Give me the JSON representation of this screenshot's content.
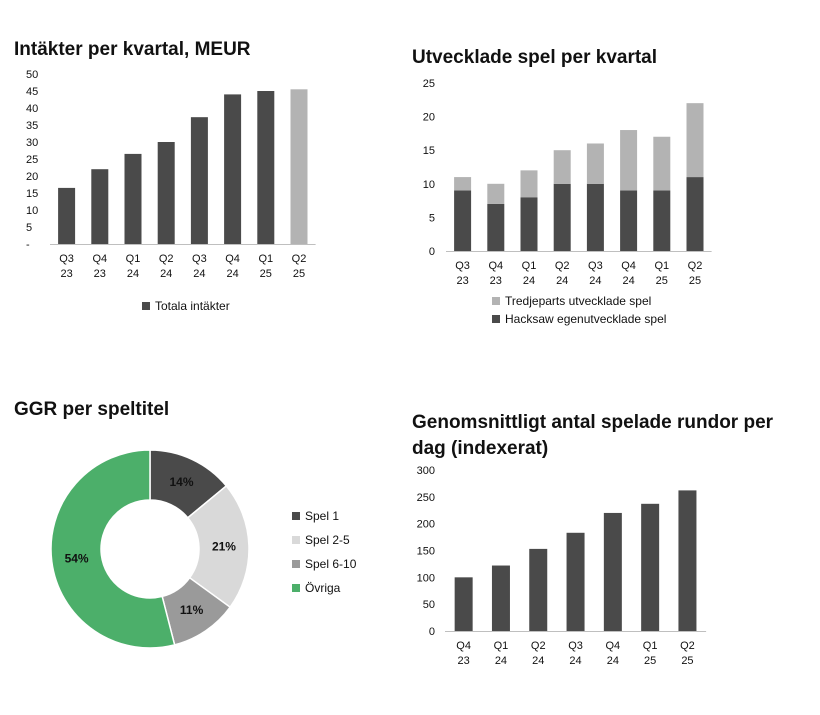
{
  "chart_data": [
    {
      "type": "bar",
      "title": "Intäkter per kvartal, MEUR",
      "categories": [
        [
          "Q3",
          "23"
        ],
        [
          "Q4",
          "23"
        ],
        [
          "Q1",
          "24"
        ],
        [
          "Q2",
          "24"
        ],
        [
          "Q3",
          "24"
        ],
        [
          "Q4",
          "24"
        ],
        [
          "Q1",
          "25"
        ],
        [
          "Q2",
          "25"
        ]
      ],
      "series": [
        {
          "name": "Totala intäkter",
          "values": [
            16.5,
            22,
            26.5,
            30,
            37.3,
            44,
            45,
            45.5
          ]
        }
      ],
      "bar_colors": [
        "#4a4a4a",
        "#4a4a4a",
        "#4a4a4a",
        "#4a4a4a",
        "#4a4a4a",
        "#4a4a4a",
        "#4a4a4a",
        "#b3b3b3"
      ],
      "y_ticks": [
        0,
        5,
        10,
        15,
        20,
        25,
        30,
        35,
        40,
        45,
        50
      ],
      "y_tick_labels": [
        "-",
        "5",
        "10",
        "15",
        "20",
        "25",
        "30",
        "35",
        "40",
        "45",
        "50"
      ],
      "ylim": [
        0,
        50
      ],
      "xlabel": "",
      "ylabel": "",
      "legend": {
        "labels": [
          "Totala intäkter"
        ],
        "colors": [
          "#4a4a4a"
        ],
        "position": "bottom"
      }
    },
    {
      "type": "bar",
      "stacked": true,
      "title": "Utvecklade spel per kvartal",
      "categories": [
        [
          "Q3",
          "23"
        ],
        [
          "Q4",
          "23"
        ],
        [
          "Q1",
          "24"
        ],
        [
          "Q2",
          "24"
        ],
        [
          "Q3",
          "24"
        ],
        [
          "Q4",
          "24"
        ],
        [
          "Q1",
          "25"
        ],
        [
          "Q2",
          "25"
        ]
      ],
      "series": [
        {
          "name": "Hacksaw egenutvecklade spel",
          "color": "#4a4a4a",
          "values": [
            9,
            7,
            8,
            10,
            10,
            9,
            9,
            11
          ]
        },
        {
          "name": "Tredjeparts utvecklade spel",
          "color": "#b3b3b3",
          "values": [
            2,
            3,
            4,
            5,
            6,
            9,
            8,
            11
          ]
        }
      ],
      "y_ticks": [
        0,
        5,
        10,
        15,
        20,
        25
      ],
      "y_tick_labels": [
        "0",
        "5",
        "10",
        "15",
        "20",
        "25"
      ],
      "ylim": [
        0,
        25
      ],
      "xlabel": "",
      "ylabel": "",
      "legend": {
        "labels": [
          "Tredjeparts utvecklade spel",
          "Hacksaw egenutvecklade spel"
        ],
        "colors": [
          "#b3b3b3",
          "#4a4a4a"
        ],
        "position": "bottom"
      }
    },
    {
      "type": "pie",
      "donut": true,
      "title": "GGR per speltitel",
      "labels": [
        "Spel 1",
        "Spel 2-5",
        "Spel 6-10",
        "Övriga"
      ],
      "values": [
        14,
        21,
        11,
        54
      ],
      "value_labels": [
        "14%",
        "21%",
        "11%",
        "54%"
      ],
      "colors": [
        "#4a4a4a",
        "#d9d9d9",
        "#9a9a9a",
        "#4caf6a"
      ],
      "legend": {
        "labels": [
          "Spel 1",
          "Spel 2-5",
          "Spel 6-10",
          "Övriga"
        ],
        "colors": [
          "#4a4a4a",
          "#d9d9d9",
          "#9a9a9a",
          "#4caf6a"
        ],
        "position": "right"
      }
    },
    {
      "type": "bar",
      "title": "Genomsnittligt antal spelade rundor per dag (indexerat)",
      "categories": [
        [
          "Q4",
          "23"
        ],
        [
          "Q1",
          "24"
        ],
        [
          "Q2",
          "24"
        ],
        [
          "Q3",
          "24"
        ],
        [
          "Q4",
          "24"
        ],
        [
          "Q1",
          "25"
        ],
        [
          "Q2",
          "25"
        ]
      ],
      "series": [
        {
          "name": "Rundor per dag",
          "values": [
            100,
            122,
            153,
            183,
            220,
            237,
            262
          ]
        }
      ],
      "bar_colors": [
        "#4a4a4a",
        "#4a4a4a",
        "#4a4a4a",
        "#4a4a4a",
        "#4a4a4a",
        "#4a4a4a",
        "#4a4a4a"
      ],
      "y_ticks": [
        0,
        50,
        100,
        150,
        200,
        250,
        300
      ],
      "y_tick_labels": [
        "0",
        "50",
        "100",
        "150",
        "200",
        "250",
        "300"
      ],
      "ylim": [
        0,
        300
      ],
      "xlabel": "",
      "ylabel": ""
    }
  ]
}
